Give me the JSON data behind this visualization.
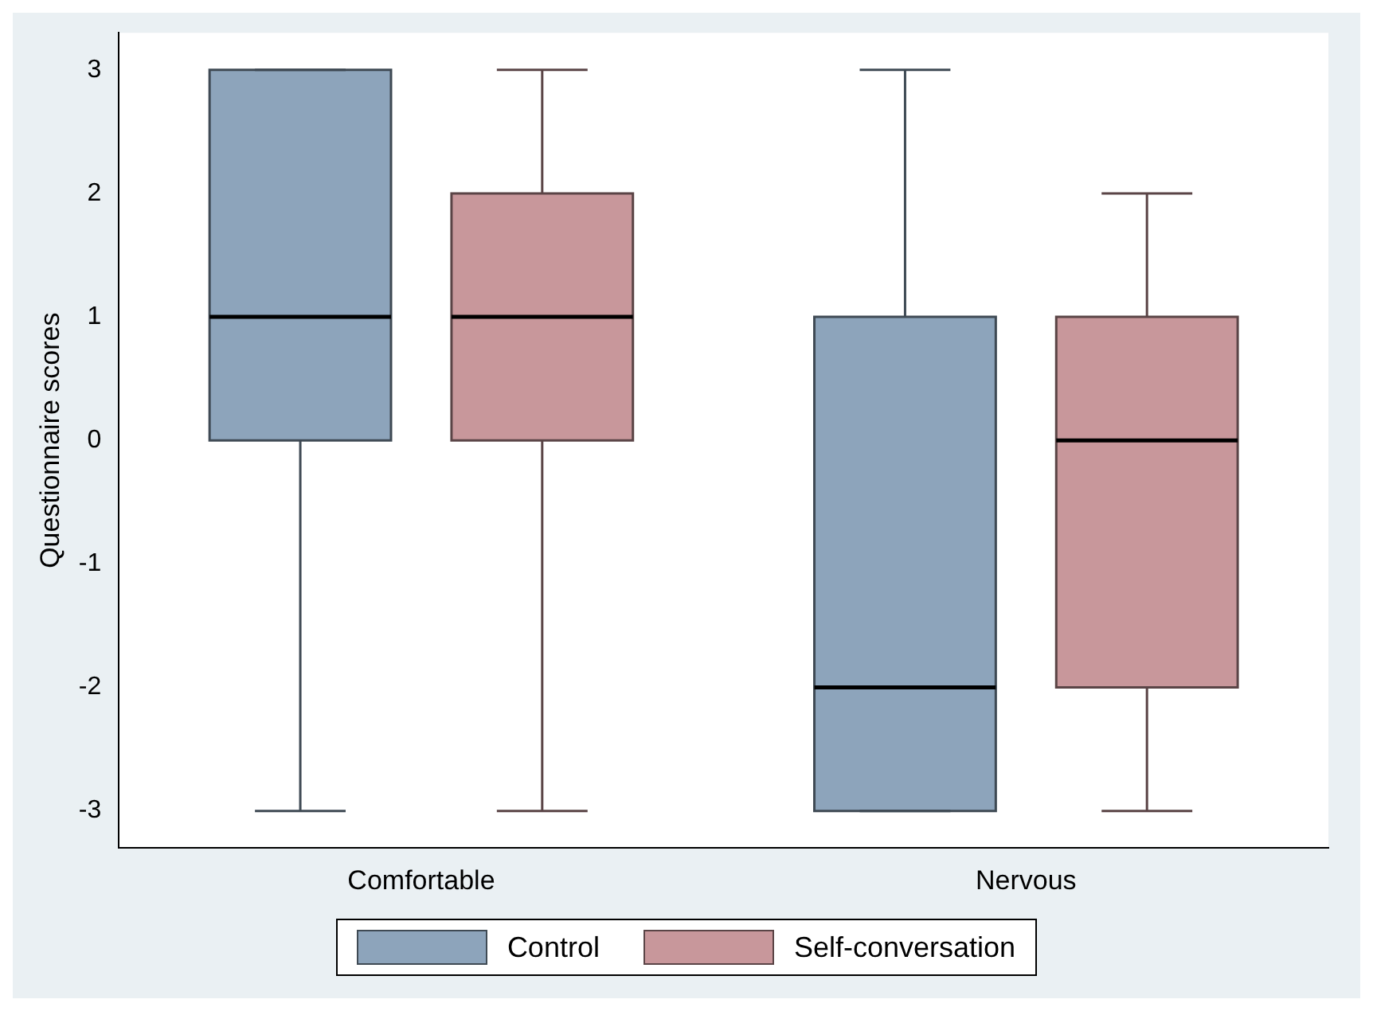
{
  "chart_data": {
    "type": "box",
    "ylabel": "Questionnaire scores",
    "categories": [
      "Comfortable",
      "Nervous"
    ],
    "ylim": [
      -3.3,
      3.3
    ],
    "yticks": [
      -3,
      -2,
      -1,
      0,
      1,
      2,
      3
    ],
    "grid": false,
    "legend": "bottom",
    "series": [
      {
        "name": "Control",
        "color": "#8da4bb",
        "boxes": [
          {
            "low": -3,
            "q1": 0,
            "median": 1,
            "q3": 3,
            "high": 3
          },
          {
            "low": -3,
            "q1": -3,
            "median": -2,
            "q3": 1,
            "high": 3
          }
        ]
      },
      {
        "name": "Self-conversation",
        "color": "#c8979b",
        "boxes": [
          {
            "low": -3,
            "q1": 0,
            "median": 1,
            "q3": 2,
            "high": 3
          },
          {
            "low": -3,
            "q1": -2,
            "median": 0,
            "q3": 1,
            "high": 2
          }
        ]
      }
    ]
  }
}
